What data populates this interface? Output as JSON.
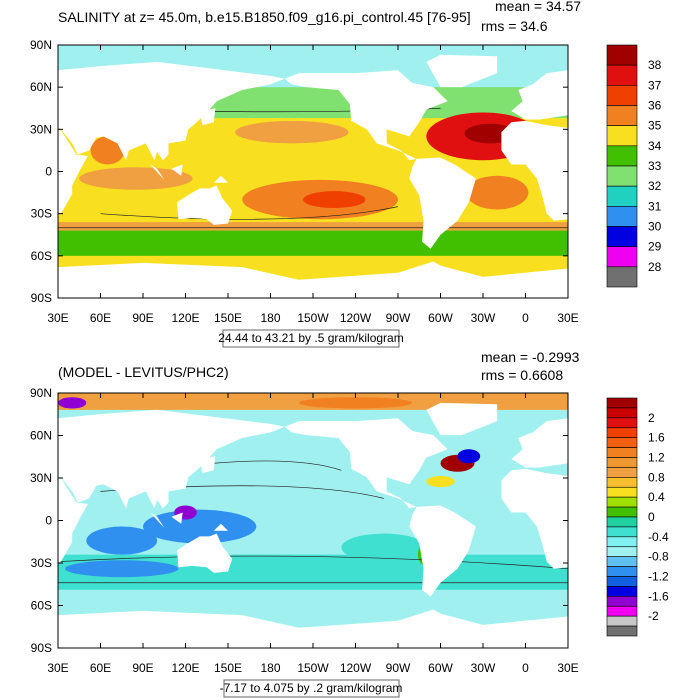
{
  "panels": [
    {
      "title": "SALINITY at z=  45.0m, b.e15.B1850.f09_g16.pi_control.45 [76-95]",
      "mean": "mean = 34.57",
      "rms": "rms = 34.6",
      "x_ticks": [
        "30E",
        "60E",
        "90E",
        "120E",
        "150E",
        "180",
        "150W",
        "120W",
        "90W",
        "60W",
        "30W",
        "0",
        "30E"
      ],
      "y_ticks": [
        "90N",
        "60N",
        "30N",
        "0",
        "30S",
        "60S",
        "90S"
      ],
      "colorbar": {
        "labels": [
          38,
          37,
          36,
          35,
          34,
          33,
          32,
          31,
          30,
          29,
          28
        ],
        "colors": [
          "#a00000",
          "#e01010",
          "#f04000",
          "#f08020",
          "#f8e020",
          "#40c000",
          "#80e070",
          "#20d0c0",
          "#3090f0",
          "#0000e0",
          "#f000f0",
          "#707070"
        ]
      },
      "info": "24.44 to 43.21 by .5 gram/kilogram"
    },
    {
      "title": "(MODEL - LEVITUS/PHC2)",
      "mean": "mean = -0.2993",
      "rms": "rms = 0.6608",
      "x_ticks": [
        "30E",
        "60E",
        "90E",
        "120E",
        "150E",
        "180",
        "150W",
        "120W",
        "90W",
        "60W",
        "30W",
        "0",
        "30E"
      ],
      "y_ticks": [
        "90N",
        "60N",
        "30N",
        "0",
        "30S",
        "60S",
        "90S"
      ],
      "colorbar": {
        "labels": [
          2,
          1.6,
          1.2,
          0.8,
          0.4,
          0,
          -0.4,
          -0.8,
          -1.2,
          -1.6,
          -2
        ],
        "colors": [
          "#a00000",
          "#c80000",
          "#e01010",
          "#f04000",
          "#f06010",
          "#f08020",
          "#f09830",
          "#f0a040",
          "#f8c030",
          "#f8e020",
          "#a0e000",
          "#40c000",
          "#20d0a0",
          "#40e0d0",
          "#80f0f0",
          "#a0f0f0",
          "#60c0f0",
          "#3090f0",
          "#1060e0",
          "#0000e0",
          "#9000d0",
          "#f000f0",
          "#c8c8c8",
          "#707070"
        ]
      },
      "info": "-7.17 to 4.075 by .2 gram/kilogram"
    }
  ]
}
